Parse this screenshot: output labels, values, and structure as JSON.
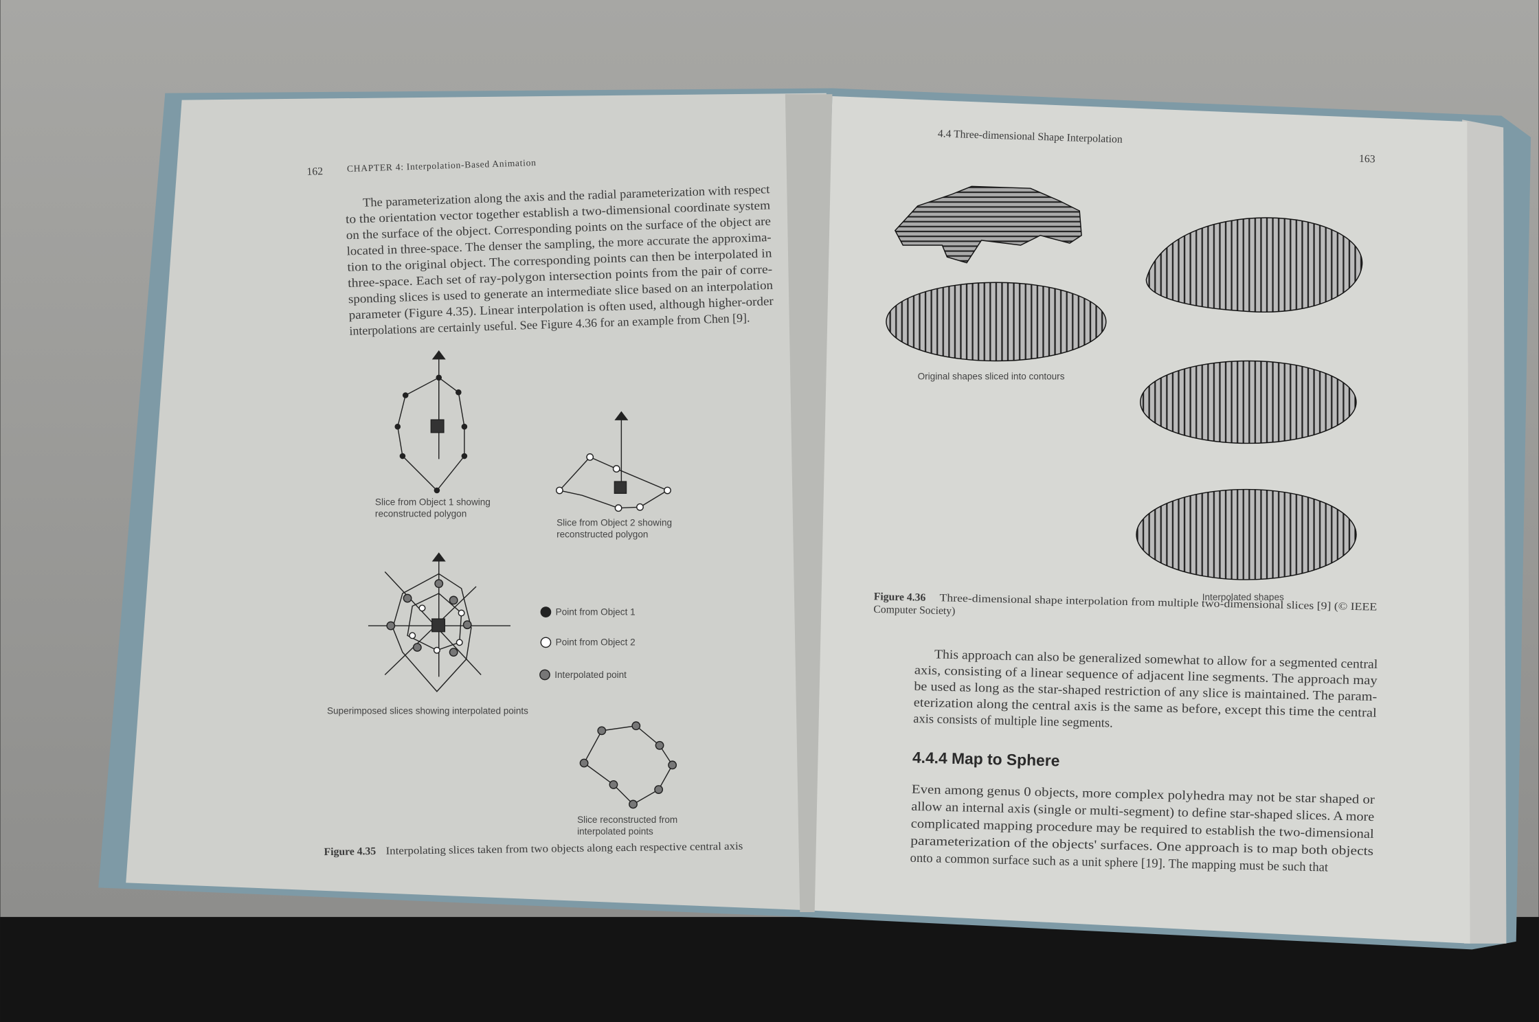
{
  "left_page": {
    "page_number": "162",
    "running_head": "CHAPTER 4: Interpolation-Based Animation",
    "paragraph_lines": [
      "The parameterization along the axis and the radial parameterization with respect",
      "to the orientation vector together establish a two-dimensional coordinate system",
      "on the surface of the object. Corresponding points on the surface of the object are",
      "located in three-space. The denser the sampling, the more accurate the approxima-",
      "tion to the original object. The corresponding points can then be interpolated in",
      "three-space. Each set of ray-polygon intersection points from the pair of corre-",
      "sponding slices is used to generate an intermediate slice based on an interpolation",
      "parameter (Figure 4.35). Linear interpolation is often used, although higher-order",
      "interpolations are certainly useful. See Figure 4.36 for an example from Chen [9]."
    ],
    "figure": {
      "object1_label": [
        "Slice from Object 1 showing",
        "reconstructed polygon"
      ],
      "object2_label": [
        "Slice from Object 2 showing",
        "reconstructed polygon"
      ],
      "superimposed_label": "Superimposed slices showing interpolated points",
      "reconstructed_label": [
        "Slice reconstructed from",
        "interpolated points"
      ],
      "legend": [
        "Point from Object 1",
        "Point from Object 2",
        "Interpolated point"
      ],
      "caption_label": "Figure 4.35",
      "caption": "Interpolating slices taken from two objects along each respective central axis"
    }
  },
  "right_page": {
    "page_number": "163",
    "running_head": "4.4 Three-dimensional Shape Interpolation",
    "figure": {
      "original_label": "Original shapes sliced into contours",
      "interpolated_label": "Interpolated shapes",
      "caption_label": "Figure 4.36",
      "caption_lines": [
        "Three-dimensional shape interpolation from multiple two-dimensional slices [9] (© IEEE",
        "Computer Society)"
      ]
    },
    "paragraph1_lines": [
      "This approach can also be generalized somewhat to allow for a segmented central",
      "axis, consisting of a linear sequence of adjacent line segments. The approach may",
      "be used as long as the star-shaped restriction of any slice is maintained. The param-",
      "eterization along the central axis is the same as before, except this time the central",
      "axis consists of multiple line segments."
    ],
    "heading": "4.4.4 Map to Sphere",
    "paragraph2_lines": [
      "Even among genus 0 objects, more complex polyhedra may not be star shaped or",
      "allow an internal axis (single or multi-segment) to define star-shaped slices. A more",
      "complicated mapping procedure may be required to establish the two-dimensional",
      "parameterization of the objects' surfaces. One approach is to map both objects",
      "onto a common surface such as a unit sphere [19]. The mapping must be such that"
    ]
  }
}
